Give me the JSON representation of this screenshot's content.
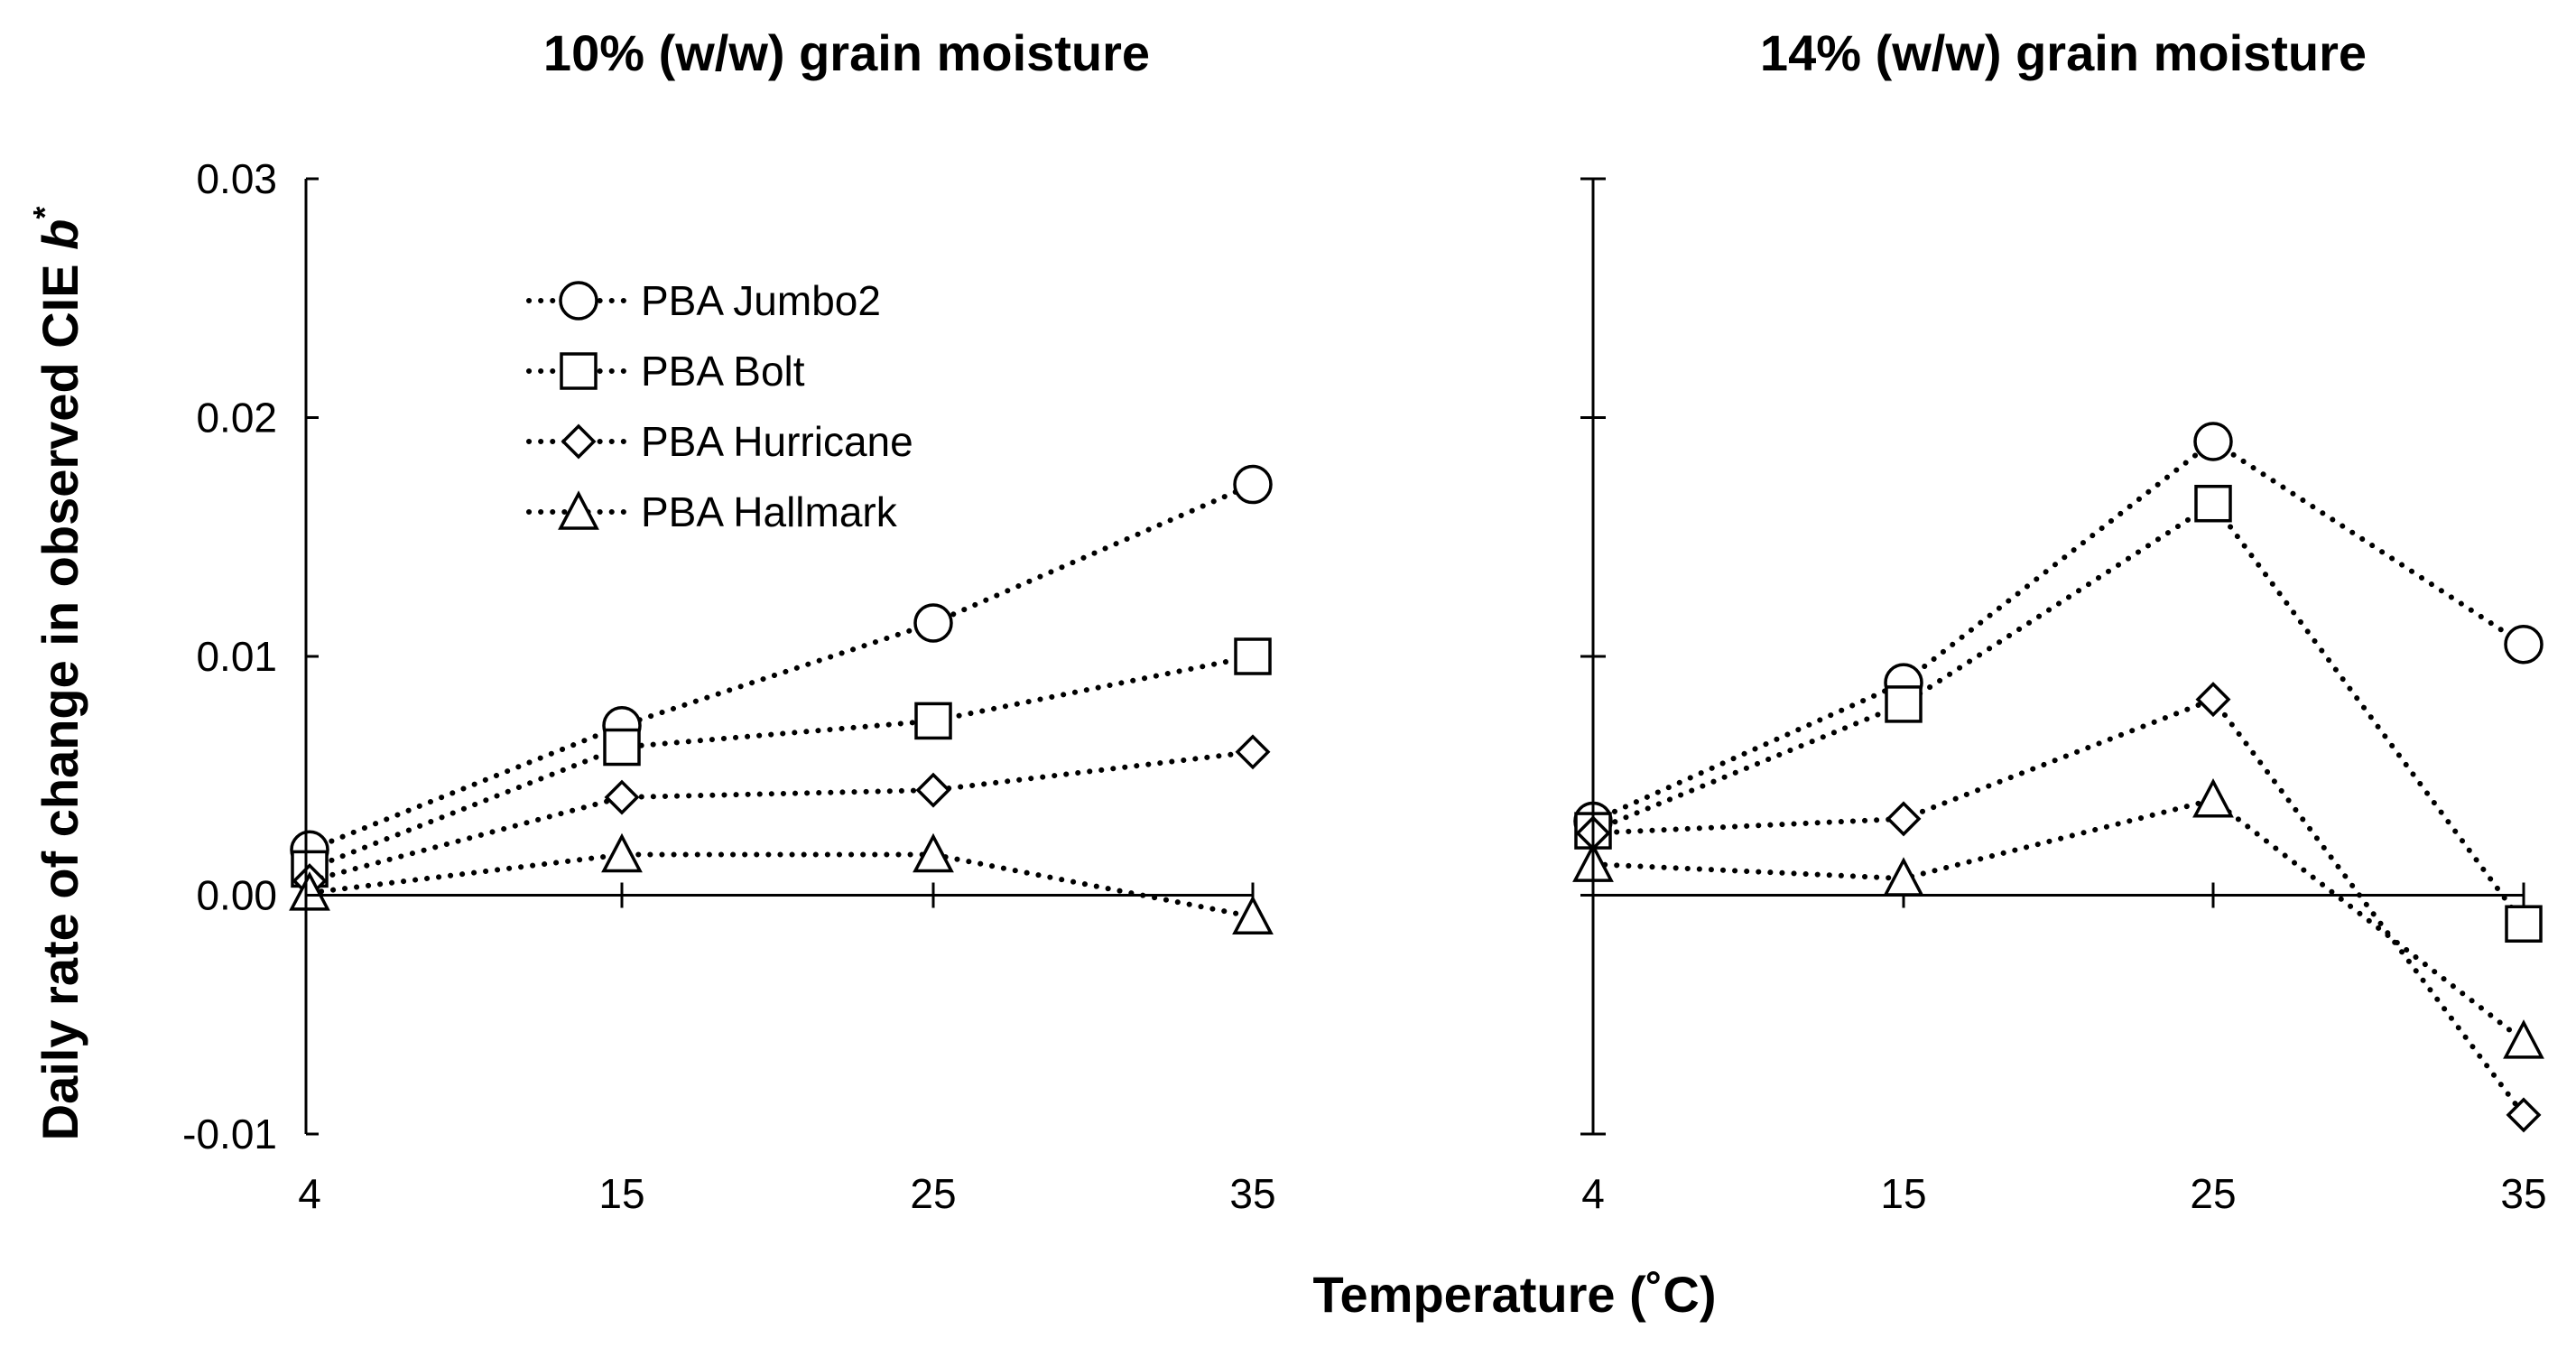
{
  "xlabel": "Temperature (˚C)",
  "ylabel_main": "Daily rate of change in observed CIE ",
  "ylabel_italic": "b",
  "ylabel_sup": "*",
  "chart_data": [
    {
      "type": "line",
      "title": "10% (w/w) grain moisture",
      "x": [
        4,
        15,
        25,
        35
      ],
      "x_tick_labels": [
        "4",
        "15",
        "25",
        "35"
      ],
      "ylim": [
        -0.01,
        0.03
      ],
      "y_ticks": [
        -0.01,
        0.0,
        0.01,
        0.02,
        0.03
      ],
      "y_tick_labels": [
        "-0.01",
        "0.00",
        "0.01",
        "0.02",
        "0.03"
      ],
      "legend_position": "upper-left",
      "series": [
        {
          "name": "PBA Jumbo2",
          "marker": "circle",
          "values": [
            0.0019,
            0.0071,
            0.0114,
            0.0172
          ]
        },
        {
          "name": "PBA Bolt",
          "marker": "square",
          "values": [
            0.0011,
            0.0062,
            0.0073,
            0.01
          ]
        },
        {
          "name": "PBA Hurricane",
          "marker": "diamond",
          "values": [
            0.0006,
            0.0041,
            0.0044,
            0.006
          ]
        },
        {
          "name": "PBA Hallmark",
          "marker": "triangle",
          "values": [
            0.0001,
            0.0017,
            0.0017,
            -0.0009
          ]
        }
      ]
    },
    {
      "type": "line",
      "title": "14% (w/w) grain moisture",
      "x": [
        4,
        15,
        25,
        35
      ],
      "x_tick_labels": [
        "4",
        "15",
        "25",
        "35"
      ],
      "ylim": [
        -0.01,
        0.03
      ],
      "y_ticks": [
        -0.01,
        0.0,
        0.01,
        0.02,
        0.03
      ],
      "legend_position": "none",
      "series": [
        {
          "name": "PBA Jumbo2",
          "marker": "circle",
          "values": [
            0.0031,
            0.0089,
            0.019,
            0.0105
          ]
        },
        {
          "name": "PBA Bolt",
          "marker": "square",
          "values": [
            0.0027,
            0.008,
            0.0164,
            -0.0012
          ]
        },
        {
          "name": "PBA Hurricane",
          "marker": "diamond",
          "values": [
            0.0026,
            0.0032,
            0.0082,
            -0.0092
          ]
        },
        {
          "name": "PBA Hallmark",
          "marker": "triangle",
          "values": [
            0.0013,
            0.0007,
            0.004,
            -0.0061
          ]
        }
      ]
    }
  ]
}
